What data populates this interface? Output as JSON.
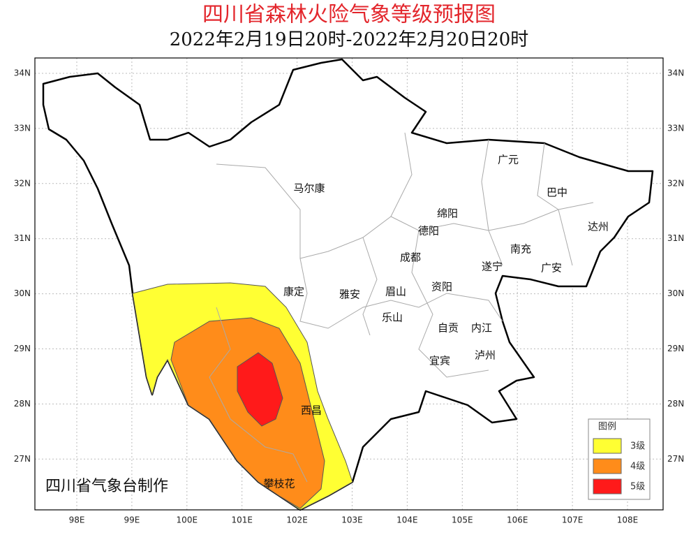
{
  "header": {
    "title": "四川省森林火险气象等级预报图",
    "subtitle": "2022年2月19日20时-2022年2月20日20时"
  },
  "map": {
    "lat_ticks": [
      "34N",
      "33N",
      "32N",
      "31N",
      "30N",
      "29N",
      "28N",
      "27N"
    ],
    "lon_ticks": [
      "98E",
      "99E",
      "100E",
      "101E",
      "102E",
      "103E",
      "104E",
      "105E",
      "106E",
      "107E",
      "108E"
    ],
    "cities": [
      {
        "label": "马尔康"
      },
      {
        "label": "广元"
      },
      {
        "label": "巴中"
      },
      {
        "label": "绵阳"
      },
      {
        "label": "德阳"
      },
      {
        "label": "达州"
      },
      {
        "label": "南充"
      },
      {
        "label": "成都"
      },
      {
        "label": "遂宁"
      },
      {
        "label": "广安"
      },
      {
        "label": "康定"
      },
      {
        "label": "雅安"
      },
      {
        "label": "眉山"
      },
      {
        "label": "资阳"
      },
      {
        "label": "乐山"
      },
      {
        "label": "自贡"
      },
      {
        "label": "内江"
      },
      {
        "label": "泸州"
      },
      {
        "label": "宜宾"
      },
      {
        "label": "西昌"
      },
      {
        "label": "攀枝花"
      }
    ],
    "credit": "四川省气象台制作"
  },
  "legend": {
    "title": "图例",
    "items": [
      {
        "label": "3级",
        "color": "#ffff33"
      },
      {
        "label": "4级",
        "color": "#ff8c1a"
      },
      {
        "label": "5级",
        "color": "#ff1a1a"
      }
    ]
  }
}
